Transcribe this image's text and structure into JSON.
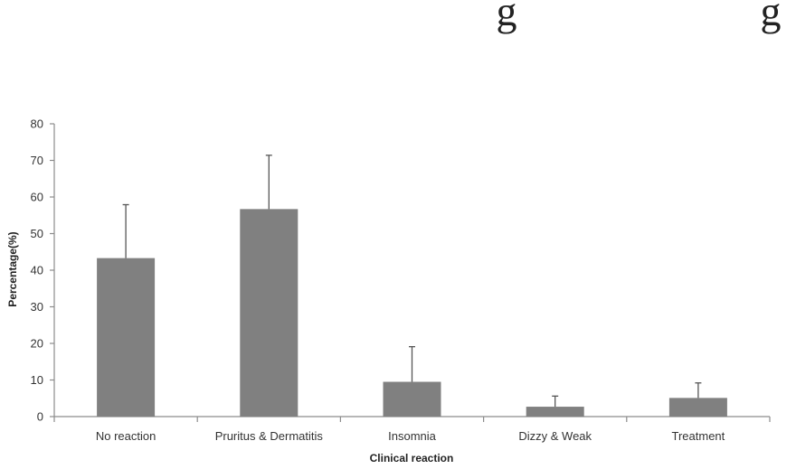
{
  "cropped_header_glyphs": [
    "g",
    "g"
  ],
  "chart_data": {
    "type": "bar",
    "title": "",
    "xlabel": "Clinical reaction",
    "ylabel": "Percentage(%)",
    "categories": [
      "No reaction",
      "Pruritus & Dermatitis",
      "Insomnia",
      "Dizzy & Weak",
      "Treatment"
    ],
    "values": [
      43.3,
      56.7,
      9.5,
      2.7,
      5.1
    ],
    "error_bars": [
      14.6,
      14.7,
      9.6,
      2.9,
      4.1
    ],
    "ylim": [
      0,
      80
    ],
    "yticks": [
      "0",
      "10",
      "20",
      "30",
      "40",
      "50",
      "60",
      "70",
      "80"
    ],
    "grid": false,
    "legend": "none",
    "bar_color": "#808080",
    "axis_color": "#8c8c8c"
  }
}
